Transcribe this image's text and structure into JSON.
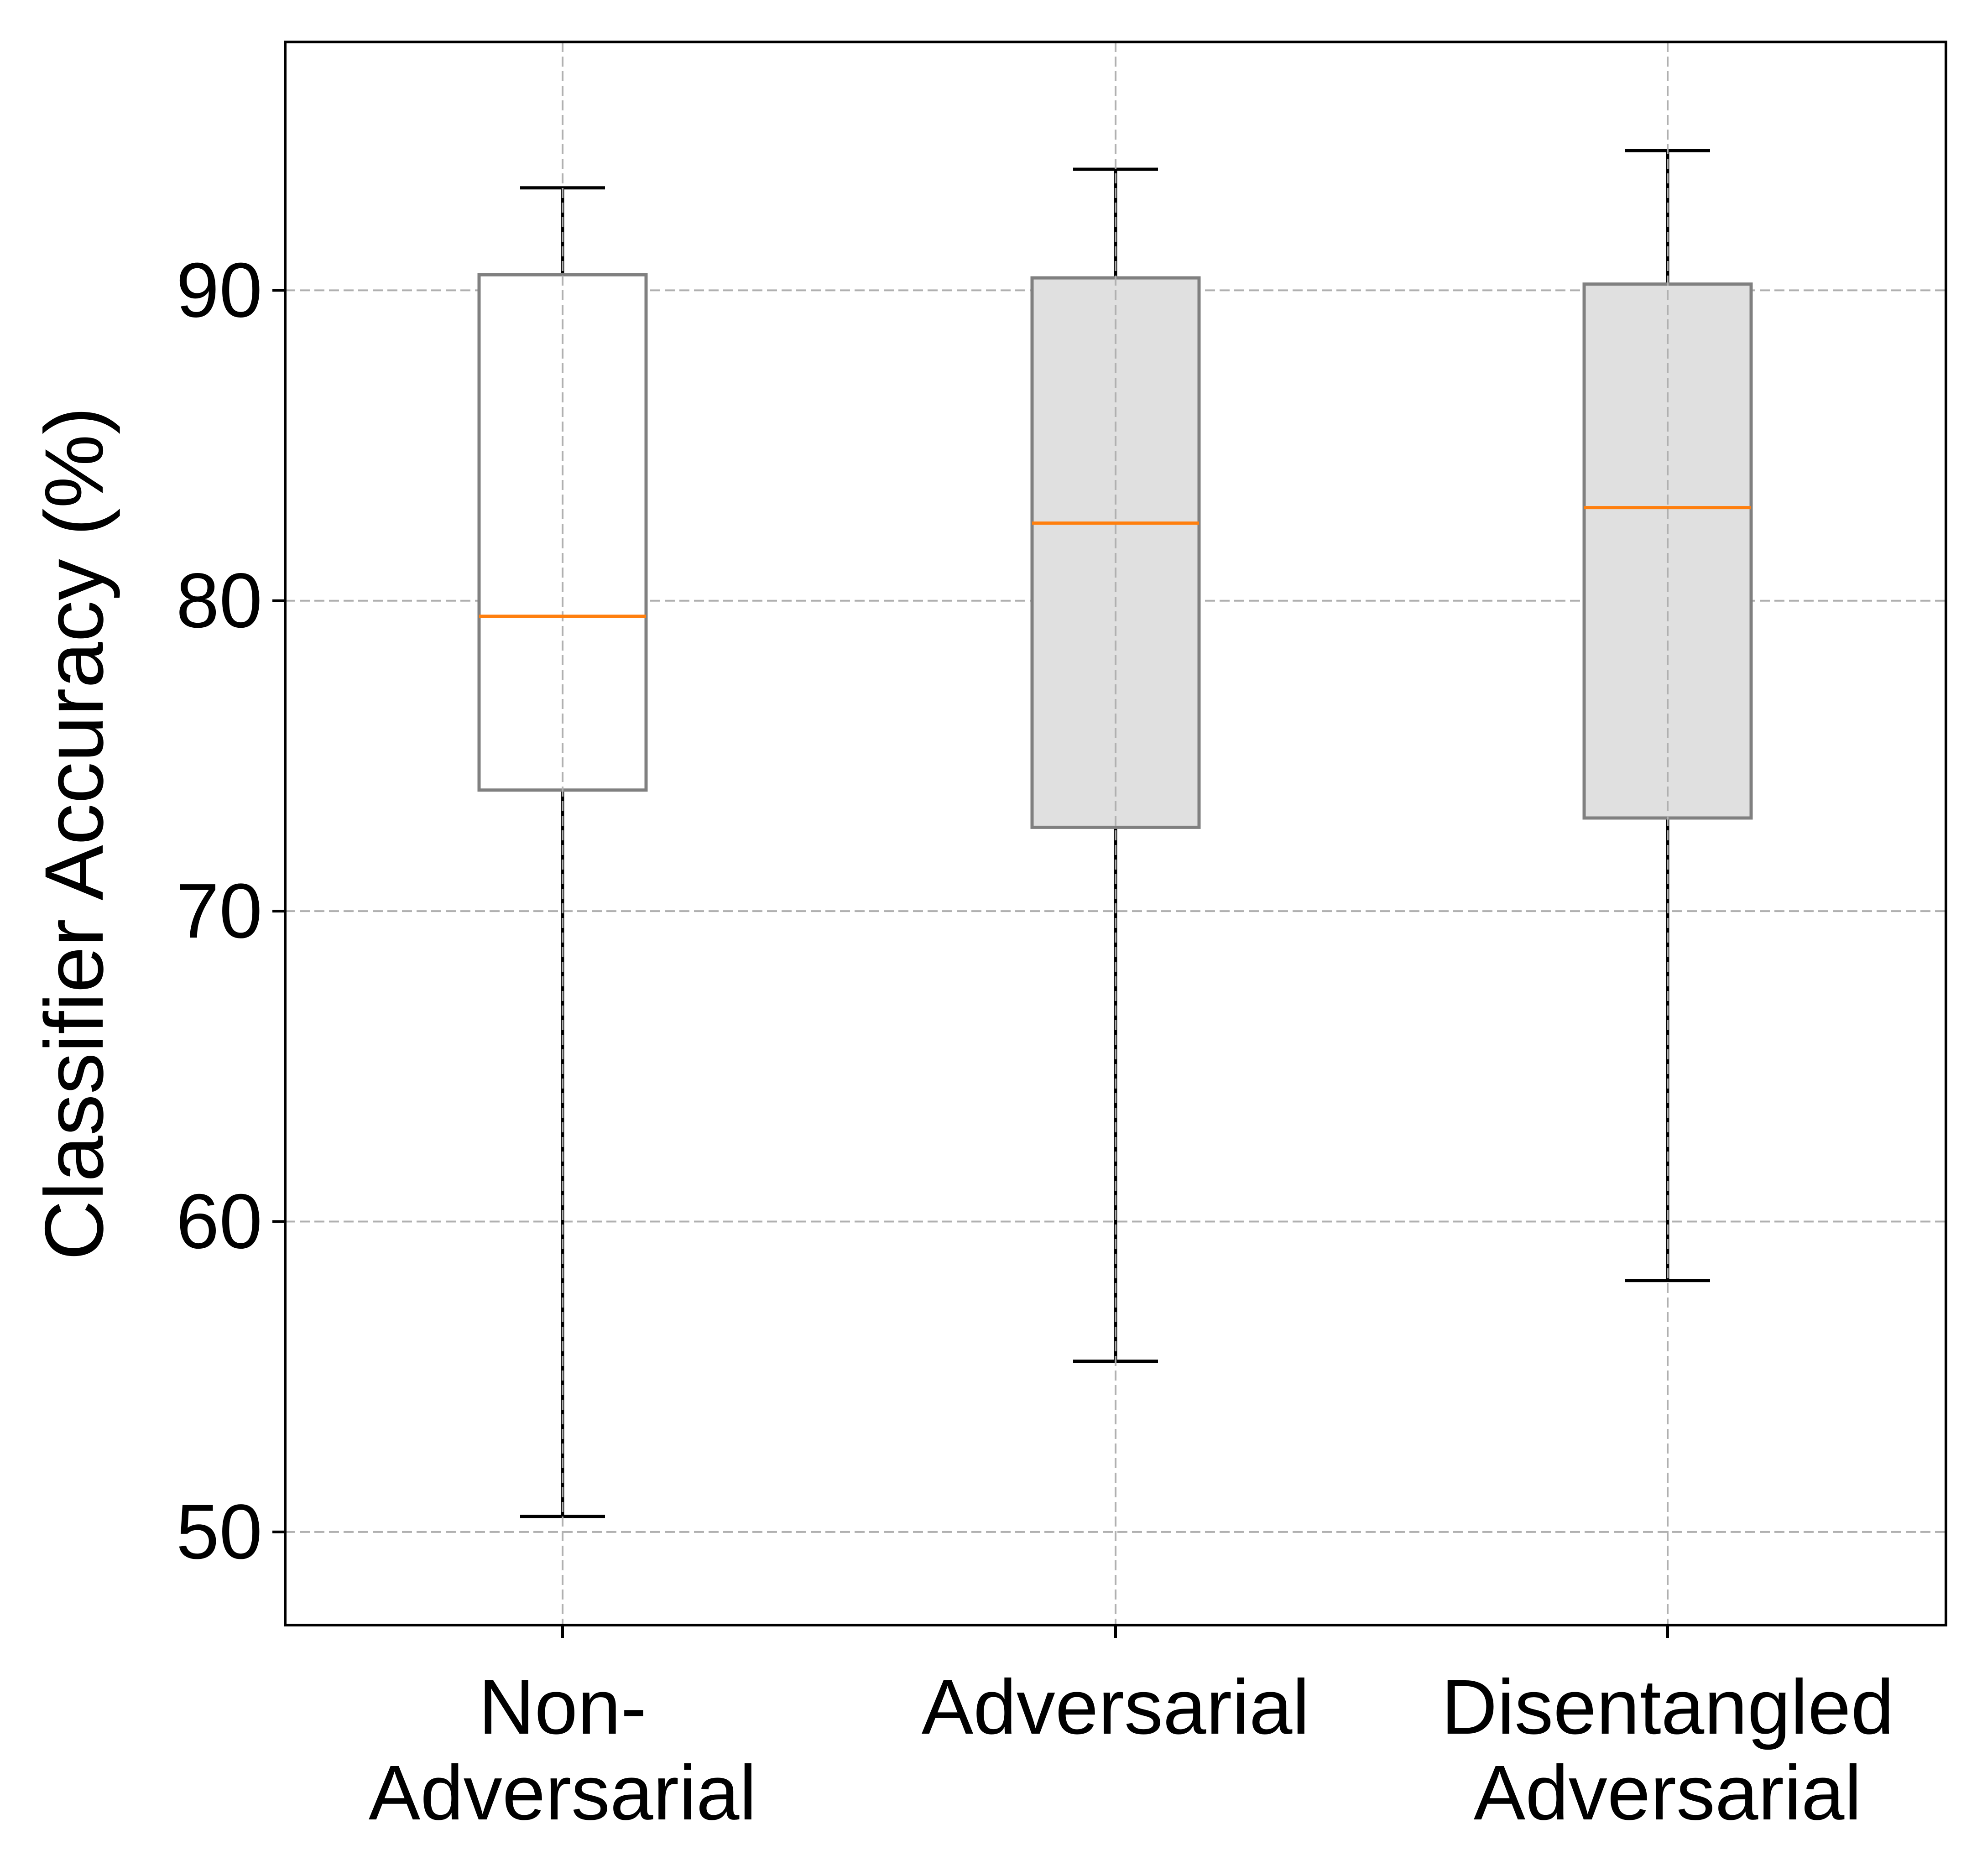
{
  "chart_data": {
    "type": "box",
    "title": "",
    "xlabel": "",
    "ylabel": "Classifier Accuracy (%)",
    "ylim": [
      47,
      98
    ],
    "yticks": [
      50,
      60,
      70,
      80,
      90
    ],
    "grid": true,
    "categories": [
      [
        "Non-",
        "Adversarial"
      ],
      [
        "Adversarial"
      ],
      [
        "Disentangled",
        "Adversarial"
      ]
    ],
    "boxes": [
      {
        "whisker_low": 50.5,
        "q1": 73.9,
        "median": 79.5,
        "q3": 90.5,
        "whisker_high": 93.3,
        "fill": "#ffffff"
      },
      {
        "whisker_low": 55.5,
        "q1": 72.7,
        "median": 82.5,
        "q3": 90.4,
        "whisker_high": 93.9,
        "fill": "#e0e0e0"
      },
      {
        "whisker_low": 58.1,
        "q1": 73.0,
        "median": 83.0,
        "q3": 90.2,
        "whisker_high": 94.5,
        "fill": "#e0e0e0"
      }
    ],
    "colors": {
      "median": "#ff7f0e",
      "box_edge": "#808080",
      "whisker": "#000000",
      "grid": "#b0b0b0"
    }
  }
}
